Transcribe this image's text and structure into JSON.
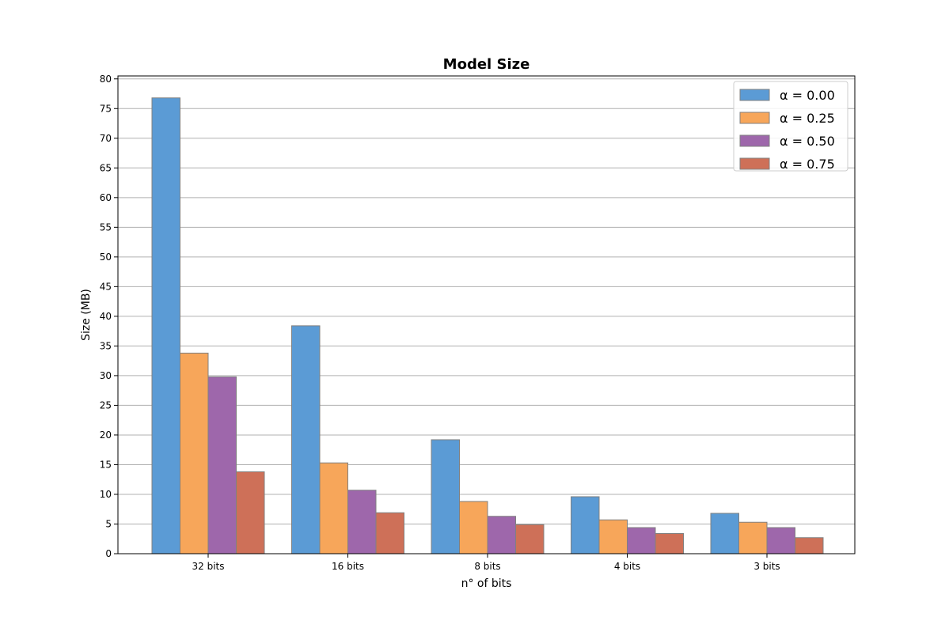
{
  "chart_data": {
    "type": "bar",
    "title": "Model Size",
    "xlabel": "n° of bits",
    "ylabel": "Size (MB)",
    "categories": [
      "32 bits",
      "16 bits",
      "8 bits",
      "4 bits",
      "3 bits"
    ],
    "ylim": [
      0,
      80.5
    ],
    "yticks": [
      0,
      5,
      10,
      15,
      20,
      25,
      30,
      35,
      40,
      45,
      50,
      55,
      60,
      65,
      70,
      75,
      80
    ],
    "grid": "horizontal",
    "legend_position": "top-right",
    "series": [
      {
        "name": "α = 0.00",
        "color": "#5b9bd5",
        "values": [
          76.8,
          38.4,
          19.2,
          9.6,
          6.8
        ]
      },
      {
        "name": "α = 0.25",
        "color": "#f7a65a",
        "values": [
          33.8,
          15.3,
          8.8,
          5.7,
          5.3
        ]
      },
      {
        "name": "α = 0.50",
        "color": "#9e67ab",
        "values": [
          29.8,
          10.7,
          6.3,
          4.4,
          4.4
        ]
      },
      {
        "name": "α = 0.75",
        "color": "#ce7058",
        "values": [
          13.8,
          6.9,
          4.9,
          3.4,
          2.7
        ]
      }
    ]
  }
}
